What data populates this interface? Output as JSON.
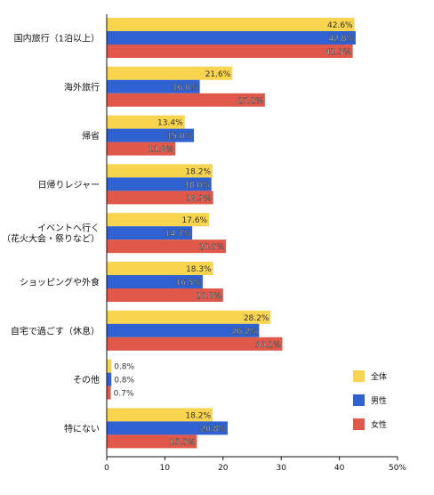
{
  "chart_data": {
    "type": "bar",
    "orientation": "horizontal",
    "categories": [
      [
        "国内旅行（1泊以上）"
      ],
      [
        "海外旅行"
      ],
      [
        "帰省"
      ],
      [
        "日帰りレジャー"
      ],
      [
        "イベントへ行く",
        "（花火大会・祭りなど）"
      ],
      [
        "ショッピングや外食"
      ],
      [
        "自宅で過ごす（休息）"
      ],
      [
        "その他"
      ],
      [
        "特にない"
      ]
    ],
    "series": [
      {
        "name": "全体",
        "color": "#f9d44e",
        "values": [
          42.6,
          21.6,
          13.4,
          18.2,
          17.6,
          18.3,
          28.2,
          0.8,
          18.2
        ]
      },
      {
        "name": "男性",
        "color": "#2f62d0",
        "values": [
          42.8,
          16.0,
          15.0,
          18.0,
          14.7,
          16.5,
          26.2,
          0.8,
          20.8
        ]
      },
      {
        "name": "女性",
        "color": "#e0584a",
        "values": [
          42.3,
          27.2,
          11.8,
          18.3,
          20.5,
          20.0,
          30.2,
          0.7,
          15.5
        ]
      }
    ],
    "xticks": [
      "0",
      "10",
      "20",
      "30",
      "40",
      "50%"
    ],
    "xlim": [
      0,
      50
    ],
    "grid": false,
    "legend_position": "bottom-right"
  }
}
